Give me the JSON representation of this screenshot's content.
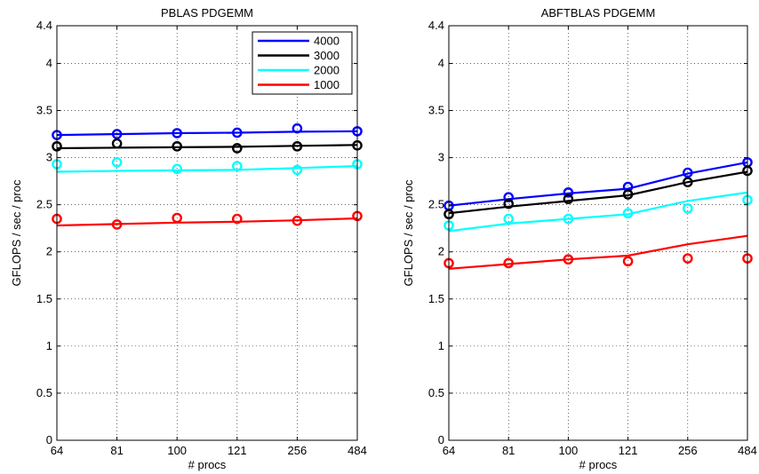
{
  "chart_data": [
    {
      "type": "line",
      "title": "PBLAS PDGEMM",
      "xlabel": "# procs",
      "ylabel": "GFLOPS / sec / proc",
      "categories": [
        "64",
        "81",
        "100",
        "121",
        "256",
        "484"
      ],
      "ylim": [
        0,
        4.4
      ],
      "yticks": [
        "0",
        "0.5",
        "1",
        "1.5",
        "2",
        "2.5",
        "3",
        "3.5",
        "4",
        "4.4"
      ],
      "grid": true,
      "legend": {
        "placement": "top-right",
        "entries": [
          "4000",
          "3000",
          "2000",
          "1000"
        ]
      },
      "series": [
        {
          "name": "4000",
          "color": "#0000ff",
          "line": [
            3.24,
            3.25,
            3.26,
            3.265,
            3.275,
            3.28
          ],
          "markers": [
            3.24,
            3.25,
            3.26,
            3.265,
            3.31,
            3.28
          ]
        },
        {
          "name": "3000",
          "color": "#000000",
          "line": [
            3.1,
            3.105,
            3.11,
            3.115,
            3.125,
            3.135
          ],
          "markers": [
            3.12,
            3.15,
            3.12,
            3.1,
            3.12,
            3.13
          ]
        },
        {
          "name": "2000",
          "color": "#00ffff",
          "line": [
            2.85,
            2.86,
            2.865,
            2.87,
            2.89,
            2.91
          ],
          "markers": [
            2.93,
            2.95,
            2.88,
            2.91,
            2.87,
            2.93
          ]
        },
        {
          "name": "1000",
          "color": "#ff0000",
          "line": [
            2.28,
            2.295,
            2.31,
            2.32,
            2.335,
            2.355
          ],
          "markers": [
            2.35,
            2.29,
            2.36,
            2.35,
            2.33,
            2.38
          ]
        }
      ]
    },
    {
      "type": "line",
      "title": "ABFTBLAS PDGEMM",
      "xlabel": "# procs",
      "ylabel": "GFLOPS / sec / proc",
      "categories": [
        "64",
        "81",
        "100",
        "121",
        "256",
        "484"
      ],
      "ylim": [
        0,
        4.4
      ],
      "yticks": [
        "0",
        "0.5",
        "1",
        "1.5",
        "2",
        "2.5",
        "3",
        "3.5",
        "4",
        "4.4"
      ],
      "grid": true,
      "series": [
        {
          "name": "4000",
          "color": "#0000ff",
          "line": [
            2.49,
            2.56,
            2.62,
            2.67,
            2.83,
            2.95
          ],
          "markers": [
            2.49,
            2.58,
            2.63,
            2.69,
            2.84,
            2.95
          ]
        },
        {
          "name": "3000",
          "color": "#000000",
          "line": [
            2.41,
            2.48,
            2.54,
            2.6,
            2.74,
            2.85
          ],
          "markers": [
            2.4,
            2.51,
            2.56,
            2.61,
            2.74,
            2.86
          ]
        },
        {
          "name": "2000",
          "color": "#00ffff",
          "line": [
            2.22,
            2.3,
            2.35,
            2.4,
            2.54,
            2.63
          ],
          "markers": [
            2.28,
            2.35,
            2.35,
            2.41,
            2.46,
            2.55
          ]
        },
        {
          "name": "1000",
          "color": "#ff0000",
          "line": [
            1.82,
            1.87,
            1.92,
            1.96,
            2.08,
            2.17
          ],
          "markers": [
            1.88,
            1.88,
            1.92,
            1.9,
            1.93,
            1.93
          ]
        }
      ]
    }
  ]
}
